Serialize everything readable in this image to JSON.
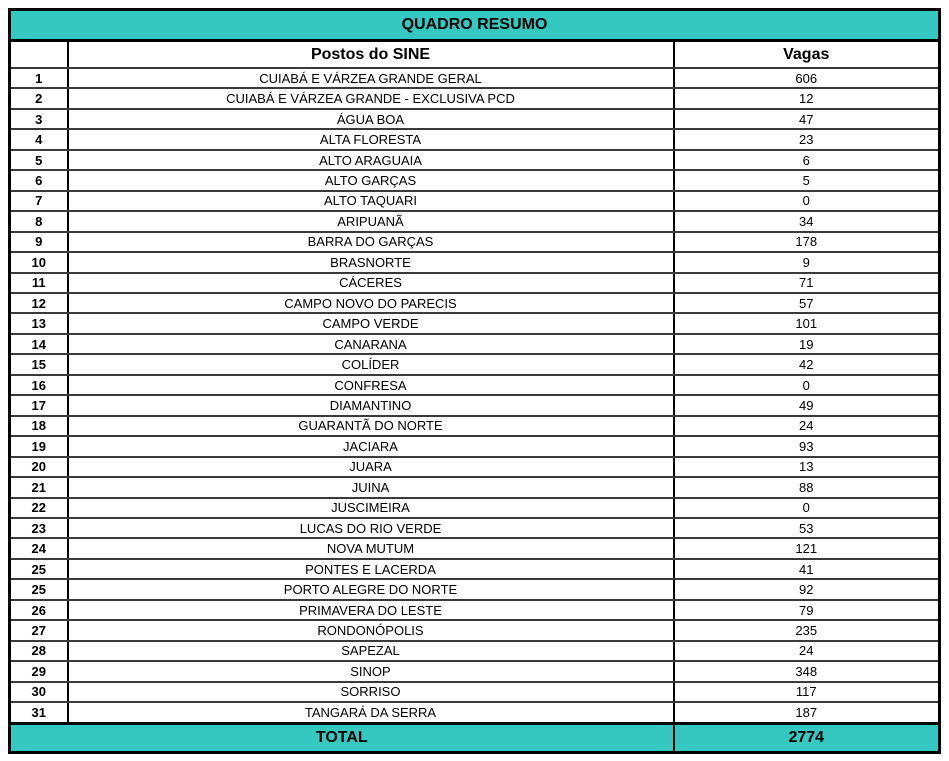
{
  "colors": {
    "teal_band": "#35c8c0",
    "border": "#000000",
    "row_line": "#3a3a3a",
    "text": "#000000"
  },
  "table": {
    "title": "QUADRO RESUMO",
    "columns": {
      "postos": "Postos do SINE",
      "vagas": "Vagas"
    },
    "rows": [
      {
        "n": "1",
        "posto": "CUIABÁ E VÁRZEA GRANDE GERAL",
        "vagas": "606"
      },
      {
        "n": "2",
        "posto": "CUIABÁ E VÁRZEA GRANDE - EXCLUSIVA PCD",
        "vagas": "12"
      },
      {
        "n": "3",
        "posto": "ÁGUA BOA",
        "vagas": "47"
      },
      {
        "n": "4",
        "posto": "ALTA FLORESTA",
        "vagas": "23"
      },
      {
        "n": "5",
        "posto": "ALTO ARAGUAIA",
        "vagas": "6"
      },
      {
        "n": "6",
        "posto": "ALTO GARÇAS",
        "vagas": "5"
      },
      {
        "n": "7",
        "posto": "ALTO TAQUARI",
        "vagas": "0"
      },
      {
        "n": "8",
        "posto": "ARIPUANÃ",
        "vagas": "34"
      },
      {
        "n": "9",
        "posto": "BARRA DO GARÇAS",
        "vagas": "178"
      },
      {
        "n": "10",
        "posto": "BRASNORTE",
        "vagas": "9"
      },
      {
        "n": "11",
        "posto": "CÁCERES",
        "vagas": "71"
      },
      {
        "n": "12",
        "posto": "CAMPO NOVO DO PARECIS",
        "vagas": "57"
      },
      {
        "n": "13",
        "posto": "CAMPO VERDE",
        "vagas": "101"
      },
      {
        "n": "14",
        "posto": "CANARANA",
        "vagas": "19"
      },
      {
        "n": "15",
        "posto": "COLÍDER",
        "vagas": "42"
      },
      {
        "n": "16",
        "posto": "CONFRESA",
        "vagas": "0"
      },
      {
        "n": "17",
        "posto": "DIAMANTINO",
        "vagas": "49"
      },
      {
        "n": "18",
        "posto": "GUARANTÃ DO NORTE",
        "vagas": "24"
      },
      {
        "n": "19",
        "posto": "JACIARA",
        "vagas": "93"
      },
      {
        "n": "20",
        "posto": "JUARA",
        "vagas": "13"
      },
      {
        "n": "21",
        "posto": "JUINA",
        "vagas": "88"
      },
      {
        "n": "22",
        "posto": "JUSCIMEIRA",
        "vagas": "0"
      },
      {
        "n": "23",
        "posto": "LUCAS DO RIO VERDE",
        "vagas": "53"
      },
      {
        "n": "24",
        "posto": "NOVA MUTUM",
        "vagas": "121"
      },
      {
        "n": "25",
        "posto": "PONTES E LACERDA",
        "vagas": "41"
      },
      {
        "n": "25",
        "posto": "PORTO ALEGRE DO NORTE",
        "vagas": "92"
      },
      {
        "n": "26",
        "posto": "PRIMAVERA DO LESTE",
        "vagas": "79"
      },
      {
        "n": "27",
        "posto": "RONDONÓPOLIS",
        "vagas": "235"
      },
      {
        "n": "28",
        "posto": "SAPEZAL",
        "vagas": "24"
      },
      {
        "n": "29",
        "posto": "SINOP",
        "vagas": "348"
      },
      {
        "n": "30",
        "posto": "SORRISO",
        "vagas": "117"
      },
      {
        "n": "31",
        "posto": "TANGARÁ DA SERRA",
        "vagas": "187"
      }
    ],
    "total": {
      "label": "TOTAL",
      "vagas": "2774"
    }
  },
  "chart_data": {
    "type": "table",
    "title": "QUADRO RESUMO",
    "columns": [
      "#",
      "Postos do SINE",
      "Vagas"
    ],
    "rows_count": 32,
    "total_vagas": 2774
  }
}
